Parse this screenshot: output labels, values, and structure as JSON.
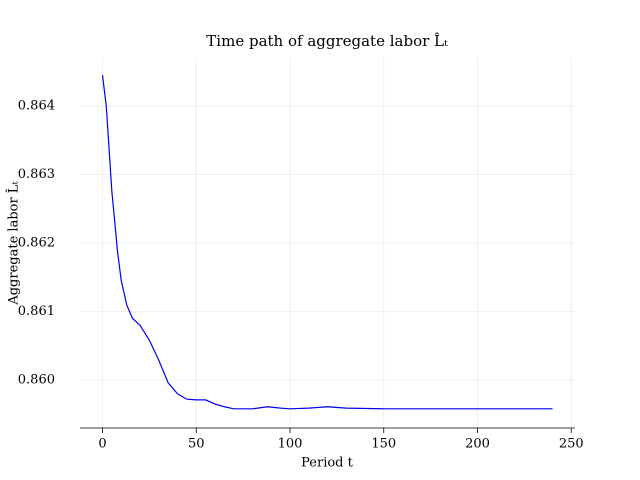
{
  "chart_data": {
    "type": "line",
    "title": "Time path of aggregate labor L̂ₜ",
    "x_label": "Period t",
    "y_label": "Aggregate labor L̂ₜ",
    "x": [
      0,
      2,
      5,
      8,
      10,
      13,
      16,
      20,
      25,
      30,
      35,
      40,
      45,
      50,
      55,
      60,
      65,
      70,
      75,
      80,
      88,
      95,
      100,
      110,
      120,
      130,
      150,
      180,
      210,
      240
    ],
    "values": [
      0.86445,
      0.864,
      0.86275,
      0.86188,
      0.86145,
      0.86109,
      0.8609,
      0.8608,
      0.86058,
      0.86029,
      0.85996,
      0.8598,
      0.85972,
      0.85971,
      0.85971,
      0.85965,
      0.85961,
      0.85958,
      0.85958,
      0.85958,
      0.85961,
      0.85959,
      0.85958,
      0.85959,
      0.85961,
      0.85959,
      0.85958,
      0.85958,
      0.85958,
      0.85958
    ],
    "color": "#0000ee",
    "xlim": [
      -12,
      252
    ],
    "ylim": [
      0.8593,
      0.8647
    ],
    "xticks": [
      0,
      50,
      100,
      150,
      200,
      250
    ],
    "yticks": [
      {
        "value": 0.86,
        "label": "0.860"
      },
      {
        "value": 0.861,
        "label": "0.861"
      },
      {
        "value": 0.862,
        "label": "0.862"
      },
      {
        "value": 0.863,
        "label": "0.863"
      },
      {
        "value": 0.864,
        "label": "0.864"
      }
    ],
    "grid": true
  }
}
